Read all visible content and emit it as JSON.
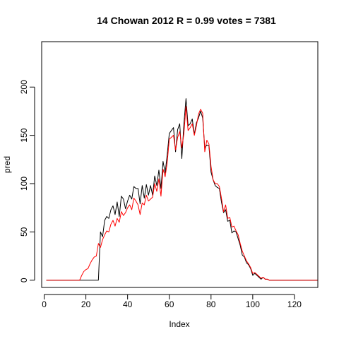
{
  "chart_data": {
    "type": "line",
    "title": "14 Chowan 2012 R = 0.99 votes = 7381",
    "xlabel": "Index",
    "ylabel": "pred",
    "xlim": [
      -1.2,
      131.2
    ],
    "ylim": [
      -7.5,
      247
    ],
    "x_ticks": [
      0,
      20,
      40,
      60,
      80,
      100,
      120
    ],
    "y_ticks": [
      0,
      50,
      100,
      150,
      200
    ],
    "grid": false,
    "legend": "none",
    "series": [
      {
        "color": "#000000",
        "values": [
          0,
          0,
          0,
          0,
          0,
          0,
          0,
          0,
          0,
          0,
          0,
          0,
          0,
          0,
          0,
          0,
          0,
          0,
          0,
          0,
          0,
          0,
          0,
          0,
          0,
          0,
          50,
          45,
          62,
          66,
          64,
          73,
          77,
          68,
          81,
          66,
          87,
          84,
          74,
          82,
          88,
          84,
          97,
          95,
          95,
          79,
          98,
          85,
          99,
          88,
          98,
          88,
          108,
          98,
          114,
          95,
          123,
          111,
          130,
          152,
          155,
          158,
          133,
          156,
          162,
          126,
          162,
          188,
          160,
          162,
          167,
          151,
          163,
          168,
          175,
          168,
          137,
          140,
          139,
          112,
          104,
          98,
          96,
          95,
          81,
          70,
          73,
          61,
          62,
          49,
          51,
          50,
          43,
          36,
          26,
          24,
          18,
          16,
          12,
          5,
          7,
          5,
          3,
          1,
          3,
          1,
          1,
          0,
          0,
          0,
          0,
          0,
          0,
          0,
          0,
          0,
          0,
          0,
          0,
          0,
          0,
          0,
          0,
          0,
          0,
          0,
          0,
          0,
          0,
          0,
          0
        ]
      },
      {
        "color": "#ff0000",
        "values": [
          0,
          0,
          0,
          0,
          0,
          0,
          0,
          0,
          0,
          0,
          0,
          0,
          0,
          0,
          0,
          0,
          0,
          5,
          9,
          11,
          12,
          17,
          21,
          24,
          25,
          38,
          34,
          42,
          47,
          51,
          50,
          58,
          62,
          56,
          64,
          60,
          71,
          67,
          70,
          75,
          78,
          73,
          85,
          82,
          78,
          68,
          80,
          78,
          88,
          82,
          84,
          86,
          100,
          92,
          105,
          87,
          115,
          107,
          122,
          146,
          148,
          150,
          135,
          148,
          154,
          137,
          152,
          180,
          155,
          158,
          162,
          150,
          160,
          172,
          177,
          173,
          133,
          145,
          141,
          118,
          104,
          100,
          100,
          97,
          85,
          71,
          78,
          64,
          65,
          55,
          56,
          51,
          47,
          38,
          30,
          25,
          20,
          17,
          13,
          7,
          8,
          6,
          4,
          2,
          3,
          1,
          1,
          0,
          0,
          0,
          0,
          0,
          0,
          0,
          0,
          0,
          0,
          0,
          0,
          0,
          0,
          0,
          0,
          0,
          0,
          0,
          0,
          0,
          0,
          0,
          0
        ]
      }
    ]
  }
}
